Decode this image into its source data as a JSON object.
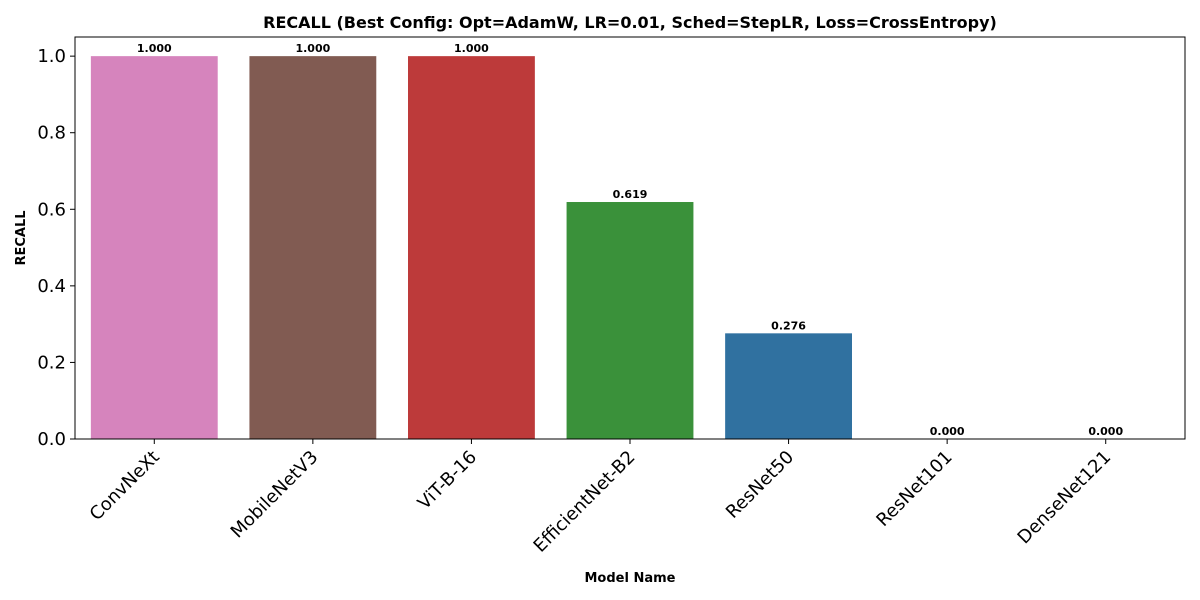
{
  "chart_data": {
    "type": "bar",
    "title": "RECALL (Best Config: Opt=AdamW, LR=0.01, Sched=StepLR, Loss=CrossEntropy)",
    "xlabel": "Model Name",
    "ylabel": "RECALL",
    "ylim": [
      0,
      1.05
    ],
    "yticks": [
      0.0,
      0.2,
      0.4,
      0.6,
      0.8,
      1.0
    ],
    "ytick_labels": [
      "0.0",
      "0.2",
      "0.4",
      "0.6",
      "0.8",
      "1.0"
    ],
    "grid": false,
    "categories": [
      "ConvNeXt",
      "MobileNetV3",
      "ViT-B-16",
      "EfficientNet-B2",
      "ResNet50",
      "ResNet101",
      "DenseNet121"
    ],
    "values": [
      1.0,
      1.0,
      1.0,
      0.619,
      0.276,
      0.0,
      0.0
    ],
    "value_labels": [
      "1.000",
      "1.000",
      "1.000",
      "0.619",
      "0.276",
      "0.000",
      "0.000"
    ],
    "colors": [
      "#d684bd",
      "#815b52",
      "#bd3a3a",
      "#3a913a",
      "#3071a0",
      "#8c8c8c",
      "#8c8c8c"
    ]
  }
}
